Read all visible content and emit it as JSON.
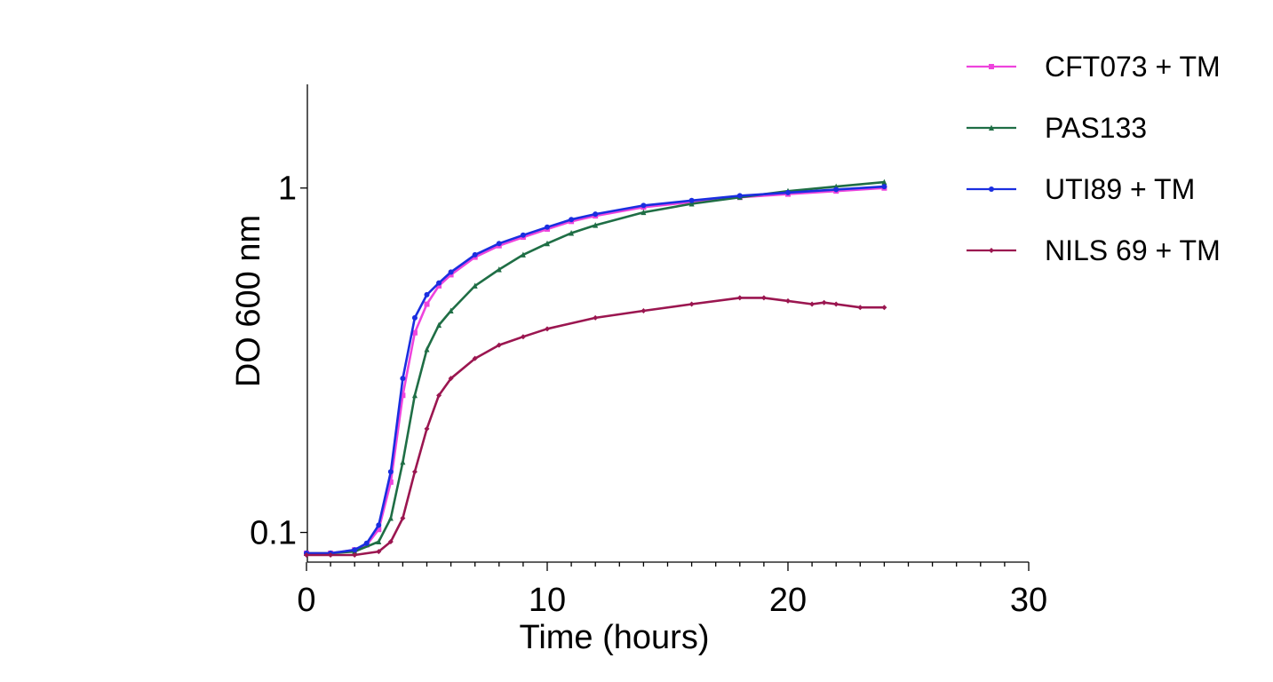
{
  "chart_data": {
    "type": "line",
    "title": "",
    "xlabel": "Time (hours)",
    "ylabel": "DO 600 nm",
    "y_scale": "log",
    "xlim": [
      0,
      30
    ],
    "ylim": [
      0.082,
      2.0
    ],
    "x_ticks": [
      0,
      10,
      20,
      30
    ],
    "x_tick_labels": [
      "0",
      "10",
      "20",
      "30"
    ],
    "y_ticks": [
      0.1,
      1
    ],
    "y_tick_labels": [
      "0.1",
      "1"
    ],
    "grid": false,
    "legend_position": "top-right",
    "series": [
      {
        "name": "CFT073 + TM",
        "color": "#ee44dd",
        "marker": "square",
        "x": [
          0,
          1,
          2,
          2.5,
          3,
          3.5,
          4,
          4.5,
          5,
          5.5,
          6,
          7,
          8,
          9,
          10,
          11,
          12,
          14,
          16,
          18,
          20,
          22,
          24
        ],
        "y": [
          0.087,
          0.087,
          0.089,
          0.092,
          0.102,
          0.14,
          0.25,
          0.38,
          0.46,
          0.52,
          0.56,
          0.63,
          0.68,
          0.72,
          0.76,
          0.8,
          0.83,
          0.88,
          0.91,
          0.94,
          0.96,
          0.98,
          1.0
        ]
      },
      {
        "name": "PAS133",
        "color": "#1f6e45",
        "marker": "triangle",
        "x": [
          0,
          1,
          2,
          3,
          3.5,
          4,
          4.5,
          5,
          5.5,
          6,
          7,
          8,
          9,
          10,
          11,
          12,
          14,
          16,
          18,
          20,
          22,
          24
        ],
        "y": [
          0.087,
          0.087,
          0.088,
          0.094,
          0.11,
          0.16,
          0.25,
          0.34,
          0.4,
          0.44,
          0.52,
          0.58,
          0.64,
          0.69,
          0.74,
          0.78,
          0.85,
          0.9,
          0.94,
          0.98,
          1.01,
          1.04
        ]
      },
      {
        "name": "UTI89 + TM",
        "color": "#1a2ee0",
        "marker": "circle",
        "x": [
          0,
          1,
          2,
          2.5,
          3,
          3.5,
          4,
          4.5,
          5,
          5.5,
          6,
          7,
          8,
          9,
          10,
          11,
          12,
          14,
          16,
          18,
          20,
          22,
          24
        ],
        "y": [
          0.087,
          0.087,
          0.089,
          0.093,
          0.105,
          0.15,
          0.28,
          0.42,
          0.49,
          0.53,
          0.57,
          0.64,
          0.69,
          0.73,
          0.77,
          0.81,
          0.84,
          0.89,
          0.92,
          0.95,
          0.97,
          0.99,
          1.01
        ]
      },
      {
        "name": "NILS 69 + TM",
        "color": "#9b1650",
        "marker": "diamond",
        "x": [
          0,
          1,
          2,
          3,
          3.5,
          4,
          4.5,
          5,
          5.5,
          6,
          7,
          8,
          9,
          10,
          12,
          14,
          16,
          18,
          19,
          20,
          21,
          21.5,
          22,
          23,
          24
        ],
        "y": [
          0.086,
          0.086,
          0.086,
          0.088,
          0.094,
          0.11,
          0.15,
          0.2,
          0.25,
          0.28,
          0.32,
          0.35,
          0.37,
          0.39,
          0.42,
          0.44,
          0.46,
          0.48,
          0.48,
          0.47,
          0.46,
          0.465,
          0.46,
          0.45,
          0.45
        ]
      }
    ]
  }
}
